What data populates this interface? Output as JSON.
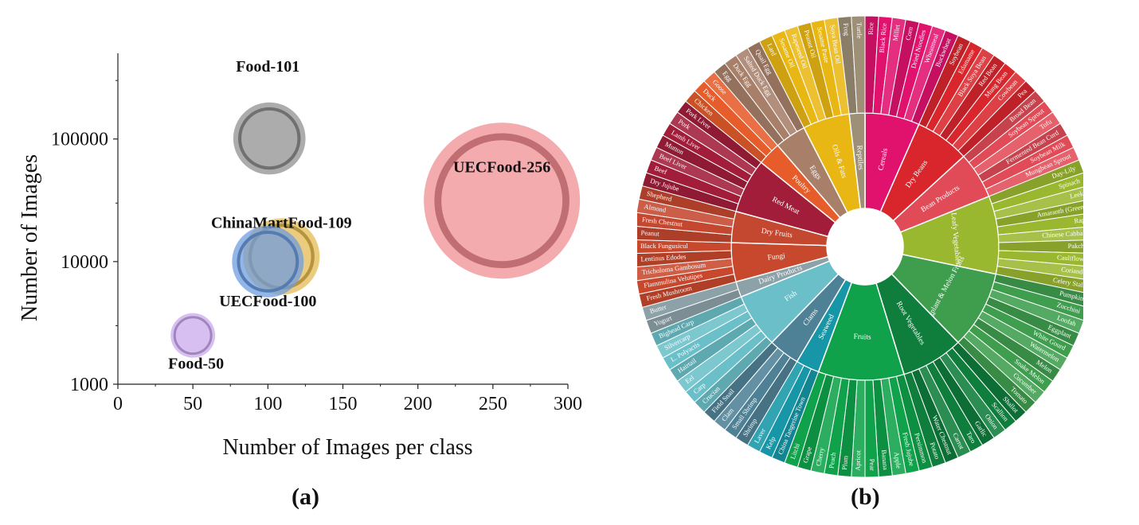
{
  "panels": {
    "a_label": "(a)",
    "b_label": "(b)"
  },
  "chart_data": [
    {
      "type": "scatter",
      "subtype": "bubble",
      "xlabel": "Number of Images per class",
      "ylabel": "Number of Images",
      "xlim": [
        0,
        300
      ],
      "xticks": [
        0,
        50,
        100,
        150,
        200,
        250,
        300
      ],
      "yscale": "log",
      "ylim": [
        1000,
        500000
      ],
      "yticks": [
        1000,
        10000,
        100000
      ],
      "grid": false,
      "points": [
        {
          "label": "Food-101",
          "x": 101,
          "y": 101000,
          "size": 101,
          "color": "#8c8c8c"
        },
        {
          "label": "UECFood-256",
          "x": 256,
          "y": 31400,
          "size": 256,
          "color": "#f08a8f"
        },
        {
          "label": "ChinaMartFood-109",
          "x": 109,
          "y": 11000,
          "size": 109,
          "color": "#e3b84c"
        },
        {
          "label": "UECFood-100",
          "x": 100,
          "y": 10000,
          "size": 100,
          "color": "#6a9ae0"
        },
        {
          "label": "Food-50",
          "x": 50,
          "y": 2500,
          "size": 50,
          "color": "#c8a8ec"
        }
      ]
    },
    {
      "type": "sunburst",
      "inner": [
        {
          "name": "Cereals",
          "color": "#e0126e",
          "items": [
            "Rice",
            "Black Rice",
            "Millet",
            "Corn",
            "Dried Noodles",
            "Wheatmeal",
            "Buckwheat"
          ]
        },
        {
          "name": "Dry Beans",
          "color": "#d8262c",
          "items": [
            "Soybean",
            "Edamame",
            "Black Soya Bean",
            "Red Bean",
            "Mung Bean",
            "Cowbean",
            "Pea"
          ]
        },
        {
          "name": "Bean Products",
          "color": "#e14b57",
          "items": [
            "Broad Bean",
            "Soybean Sprout",
            "Tofu",
            "Fermented Bean Curd",
            "Soybean Milk",
            "Mungbean Sprout"
          ]
        },
        {
          "name": "Leafy Vegetables",
          "color": "#9ab730",
          "items": [
            "Day-Lily",
            "Spinach",
            "Leek",
            "Amaranth (Green)",
            "Rape",
            "Chinese Cabbage",
            "Pakchoi",
            "Cauliflower",
            "Coriander",
            "Celery Stalk"
          ]
        },
        {
          "name": "Eggplant & Melon Fruits",
          "color": "#3e9e4e",
          "items": [
            "Pumpkin",
            "Zucchini",
            "Loofah",
            "Eggplant",
            "White Gourd",
            "Watermelon",
            "Melon",
            "Snake Melon",
            "Cucumber",
            "Tomato"
          ]
        },
        {
          "name": "Root Vegetables",
          "color": "#0f7d3c",
          "items": [
            "Shallot",
            "Scallion",
            "Onion",
            "Garlic",
            "Taro",
            "Carrot",
            "Water Chestnut",
            "Potato"
          ]
        },
        {
          "name": "Fruits",
          "color": "#0fa24a",
          "items": [
            "Persimmon",
            "Fresh Jujube",
            "Apple",
            "Banana",
            "Pear",
            "Apricot",
            "Plum",
            "Peach",
            "Cherry",
            "Grape",
            "Litchi"
          ]
        },
        {
          "name": "Seaweed",
          "color": "#1696a6",
          "items": [
            "China Tangerine Town",
            "Kelp",
            "Laver"
          ]
        },
        {
          "name": "Clams",
          "color": "#4f8196",
          "items": [
            "Shrimp",
            "Small Shrimp",
            "Clam",
            "Field Snail"
          ]
        },
        {
          "name": "Fish",
          "color": "#6bbfc8",
          "items": [
            "Crucian",
            "Carp",
            "Eel",
            "Hairtail",
            "L. Polyactis",
            "Silvercarp",
            "Bighead Carp"
          ]
        },
        {
          "name": "Dairy Products",
          "color": "#8da1a8",
          "items": [
            "Yogurt",
            "Butter"
          ]
        },
        {
          "name": "Fungi",
          "color": "#c8482e",
          "items": [
            "Fresh Mushroom",
            "Flammulina Velutipes",
            "Tricholoma Gambosum",
            "Lentinus Edodes",
            "Black Fungusicul"
          ]
        },
        {
          "name": "Dry Fruits",
          "color": "#c44730",
          "items": [
            "Peanut",
            "Fresh Chestnut",
            "Almond",
            "Shepherd"
          ]
        },
        {
          "name": "Red Meat",
          "color": "#a11d3a",
          "items": [
            "Dry Jujube",
            "Beef",
            "Beef Liver",
            "Mutton",
            "Lamb Liver",
            "Pork",
            "Pork Liver"
          ]
        },
        {
          "name": "Poultry",
          "color": "#e65c2a",
          "items": [
            "Chicken",
            "Duck",
            "Goose"
          ]
        },
        {
          "name": "Eggs",
          "color": "#a8806a",
          "items": [
            "Egg",
            "Duck Egg",
            "Salted Duck Egg",
            "Quail Egg"
          ]
        },
        {
          "name": "Oils & Fats",
          "color": "#e9b714",
          "items": [
            "Lard",
            "Sesame Oil",
            "Rapeseed Oil",
            "Peanut Oil",
            "Sesame Paste",
            "Soya Bean Oil"
          ]
        },
        {
          "name": "Reptiles",
          "color": "#9e8f77",
          "items": [
            "Frog",
            "Turtle"
          ]
        }
      ]
    }
  ]
}
